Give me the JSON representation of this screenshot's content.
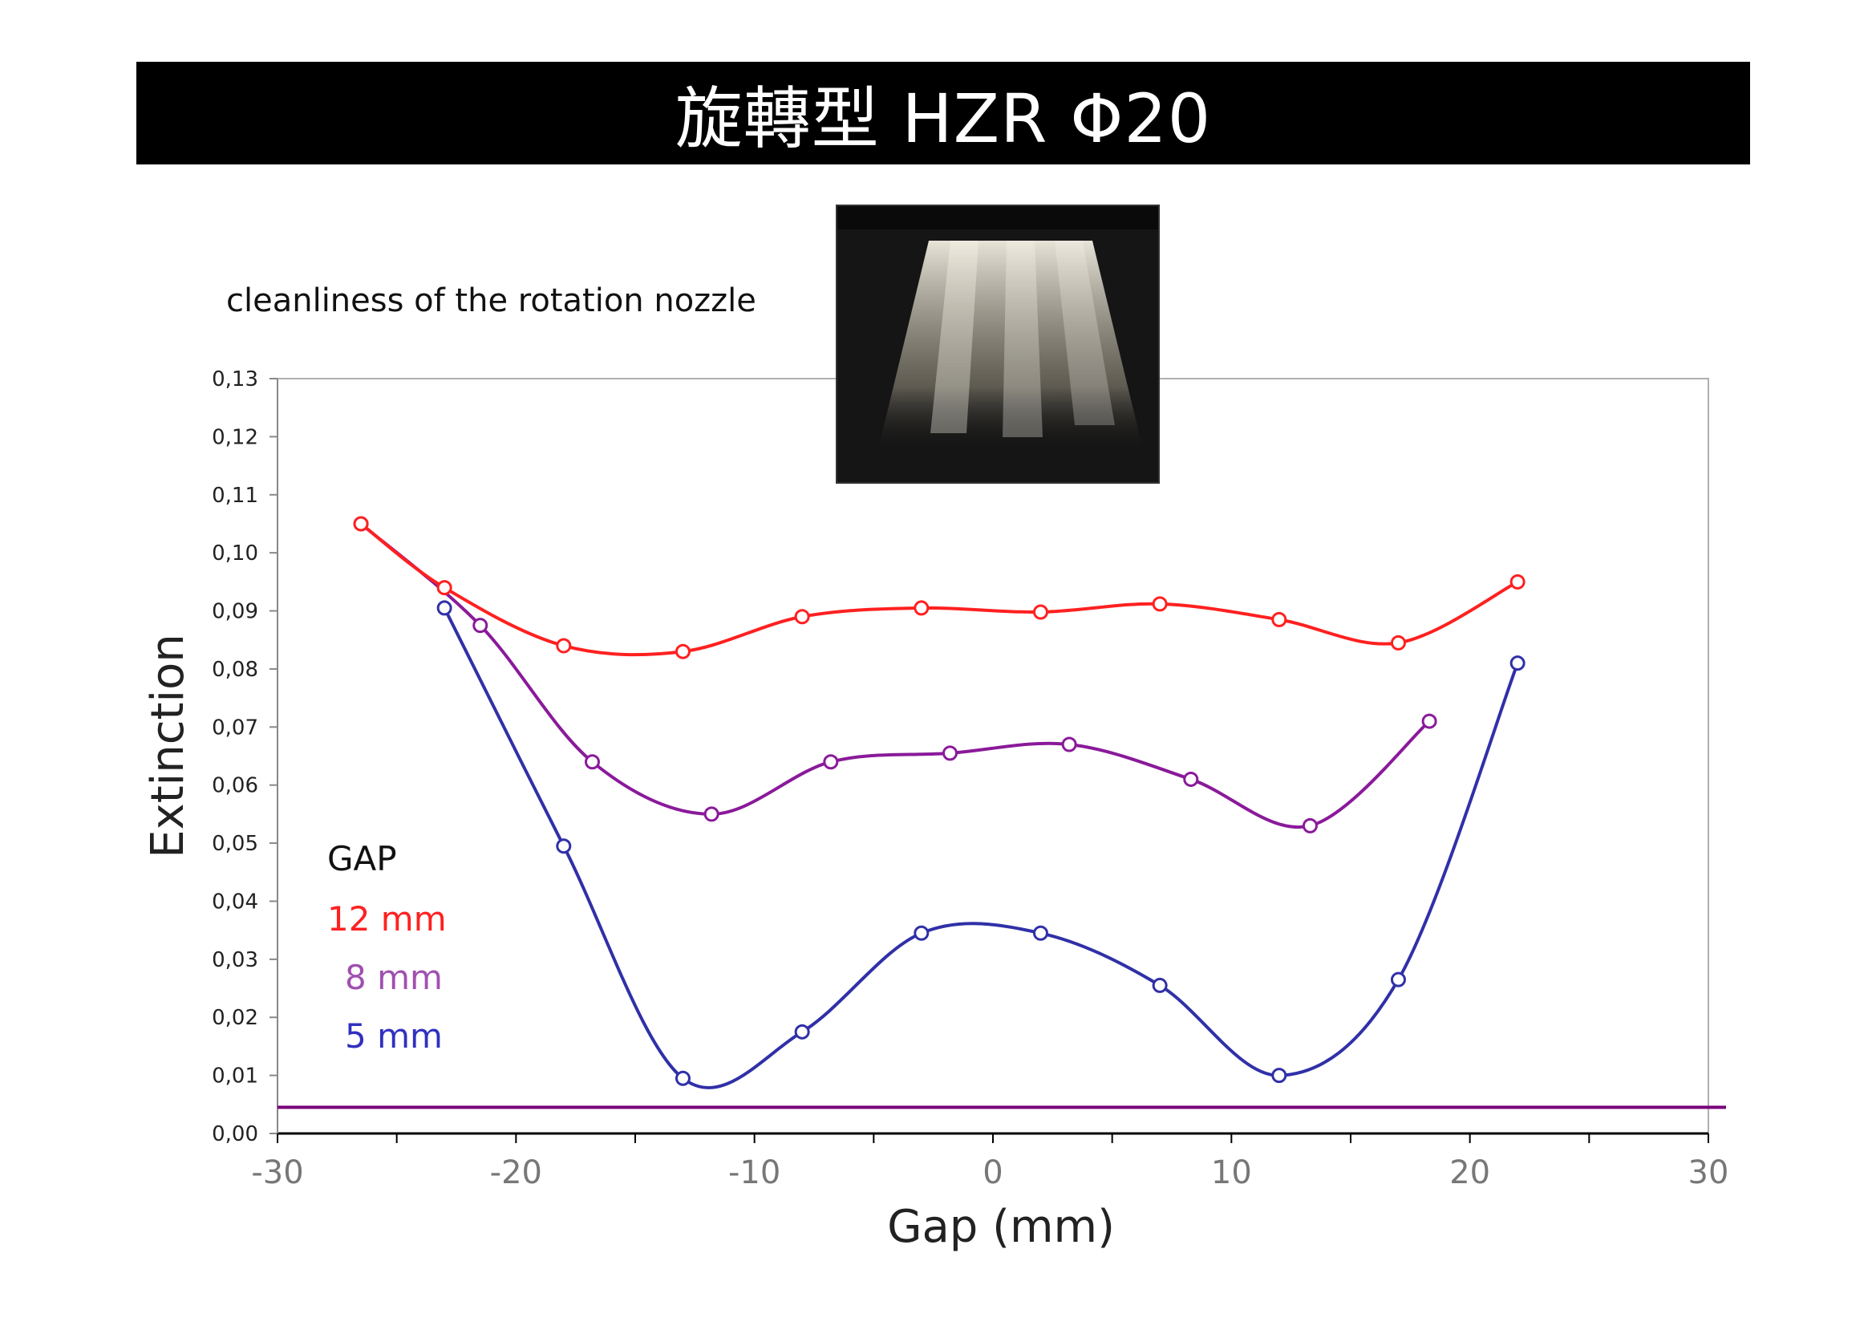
{
  "title": "旋轉型 HZR Φ20",
  "chart_data": {
    "type": "line",
    "subtitle": "cleanliness of the rotation nozzle",
    "xlabel": "Gap (mm)",
    "ylabel": "Extinction",
    "xlim": [
      -30,
      30
    ],
    "ylim": [
      0,
      0.13
    ],
    "xticks": [
      -30,
      -20,
      -10,
      0,
      10,
      20,
      30
    ],
    "xtick_labels": [
      "-30",
      "-20",
      "-10",
      "0",
      "10",
      "20",
      "30"
    ],
    "yticks": [
      0,
      0.01,
      0.02,
      0.03,
      0.04,
      0.05,
      0.06,
      0.07,
      0.08,
      0.09,
      0.1,
      0.11,
      0.12,
      0.13
    ],
    "ytick_labels": [
      "0,00",
      "0,01",
      "0,02",
      "0,03",
      "0,04",
      "0,05",
      "0,06",
      "0,07",
      "0,08",
      "0,09",
      "0,10",
      "0,11",
      "0,12",
      "0,13"
    ],
    "grid": false,
    "legend_title": "GAP",
    "legend_position": "bottom-left",
    "baseline": {
      "y": 0.0045,
      "color": "#7a007a"
    },
    "series": [
      {
        "name": "12 mm",
        "color": "#ff2020",
        "x": [
          -26.5,
          -23,
          -18,
          -13,
          -8,
          -3,
          2,
          7,
          12,
          17,
          22
        ],
        "y": [
          0.105,
          0.094,
          0.084,
          0.083,
          0.089,
          0.0905,
          0.0898,
          0.0912,
          0.0885,
          0.0845,
          0.095
        ]
      },
      {
        "name": "8 mm",
        "color": "#8a1a9a",
        "x": [
          -26.5,
          -21.5,
          -16.8,
          -11.8,
          -6.8,
          -1.8,
          3.2,
          8.3,
          13.3,
          18.3
        ],
        "y": [
          0.105,
          0.0875,
          0.064,
          0.055,
          0.064,
          0.0655,
          0.067,
          0.061,
          0.053,
          0.071
        ]
      },
      {
        "name": "5 mm",
        "color": "#3030a8",
        "x": [
          -23,
          -18,
          -13,
          -8,
          -3,
          2,
          7,
          12,
          17,
          22
        ],
        "y": [
          0.0905,
          0.0495,
          0.0095,
          0.0175,
          0.0345,
          0.0345,
          0.0255,
          0.01,
          0.0265,
          0.081
        ]
      }
    ]
  }
}
